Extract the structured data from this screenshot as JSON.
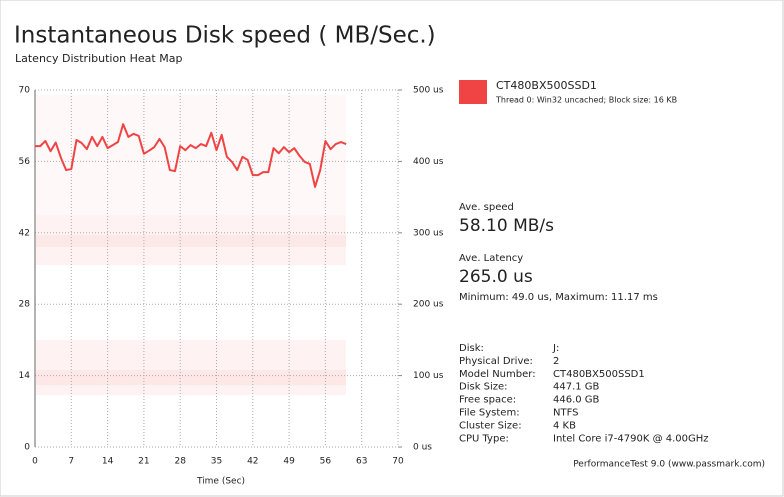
{
  "chart_data": {
    "type": "line",
    "title": "Instantaneous Disk speed ( MB/Sec.)",
    "subtitle": "Latency Distribution Heat Map",
    "x_label": "Time (Sec)",
    "x": [
      0,
      1,
      2,
      3,
      4,
      5,
      6,
      7,
      8,
      9,
      10,
      11,
      12,
      13,
      14,
      15,
      16,
      17,
      18,
      19,
      20,
      21,
      22,
      23,
      24,
      25,
      26,
      27,
      28,
      29,
      30,
      31,
      32,
      33,
      34,
      35,
      36,
      37,
      38,
      39,
      40,
      41,
      42,
      43,
      44,
      45,
      46,
      47,
      48,
      49,
      50,
      51,
      52,
      53,
      54,
      55,
      56,
      57,
      58,
      59,
      60
    ],
    "series": [
      {
        "name": "CT480BX500SSD1",
        "color": "#f04444",
        "values": [
          59,
          59,
          60,
          58,
          59.7,
          56.7,
          54.3,
          54.5,
          60.2,
          59.6,
          58.4,
          60.8,
          59,
          60.8,
          58.6,
          59.2,
          59.8,
          63.3,
          60.8,
          61.4,
          61,
          57.5,
          58.1,
          58.8,
          60.4,
          58.8,
          54.3,
          54.1,
          59,
          58.2,
          59.2,
          58.6,
          59.4,
          59,
          61.6,
          58.2,
          61.2,
          56.9,
          55.9,
          54.3,
          56.9,
          56.3,
          53.3,
          53.3,
          53.9,
          53.9,
          58.6,
          57.6,
          58.8,
          57.8,
          58.6,
          57.1,
          55.9,
          55.5,
          51,
          54.3,
          60,
          58.4,
          59.4,
          59.8,
          59.4
        ]
      }
    ],
    "xlim": [
      0,
      70
    ],
    "xticks": [
      0,
      7,
      14,
      21,
      28,
      35,
      42,
      49,
      56,
      63,
      70
    ],
    "ylim": [
      0,
      70
    ],
    "yticks": [
      0,
      14,
      28,
      42,
      56,
      70
    ],
    "y2lim": [
      0,
      500
    ],
    "y2ticks": [
      {
        "value": 0,
        "label": "0 us"
      },
      {
        "value": 100,
        "label": "100 us"
      },
      {
        "value": 200,
        "label": "200 us"
      },
      {
        "value": 300,
        "label": "300 us"
      },
      {
        "value": 400,
        "label": "400 us"
      },
      {
        "value": 500,
        "label": "500 us"
      }
    ],
    "grid": true
  },
  "legend": {
    "note": "Thread 0: Win32 uncached; Block size: 16 KB"
  },
  "stats": {
    "speed_label": "Ave. speed",
    "speed": "58.10 MB/s",
    "latency_label": "Ave. Latency",
    "latency": "265.0 us",
    "range": "Minimum: 49.0 us, Maximum: 11.17 ms"
  },
  "info": [
    [
      "Disk:",
      "J:"
    ],
    [
      "Physical Drive:",
      "2"
    ],
    [
      "Model Number:",
      "CT480BX500SSD1"
    ],
    [
      "Disk Size:",
      "447.1 GB"
    ],
    [
      "Free space:",
      "446.0 GB"
    ],
    [
      "File System:",
      "NTFS"
    ],
    [
      "Cluster Size:",
      "4 KB"
    ],
    [
      "CPU Type:",
      "Intel Core i7-4790K @ 4.00GHz"
    ]
  ],
  "footer": "PerformanceTest 9.0 (www.passmark.com)"
}
